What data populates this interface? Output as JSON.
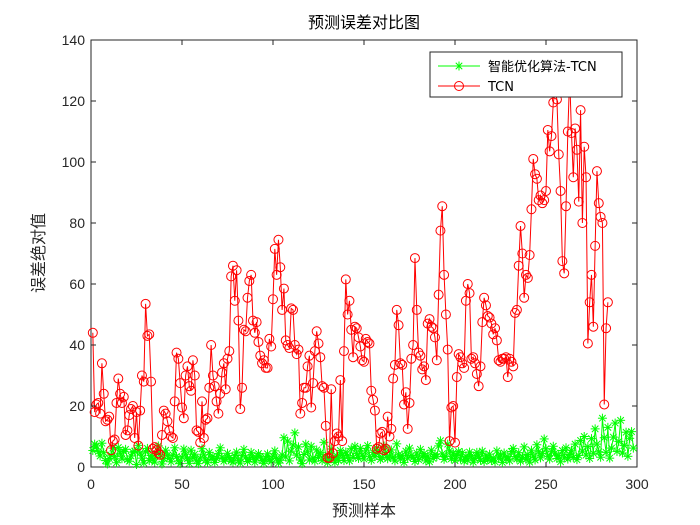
{
  "chart_data": {
    "type": "line",
    "title": "预测误差对比图",
    "xlabel": "预测样本",
    "ylabel": "误差绝对值",
    "xlim": [
      0,
      300
    ],
    "ylim": [
      0,
      140
    ],
    "xticks": [
      0,
      50,
      100,
      150,
      200,
      250,
      300
    ],
    "yticks": [
      0,
      20,
      40,
      60,
      80,
      100,
      120,
      140
    ],
    "grid": false,
    "legend_position": "top-right",
    "series": [
      {
        "name": "智能优化算法-TCN",
        "color": "#00ff00",
        "marker": "asterisk",
        "x_start": 1,
        "values": [
          5.4,
          7.5,
          6.9,
          5.1,
          3.6,
          7.8,
          4.7,
          2.1,
          1.0,
          2.8,
          3.9,
          6.2,
          3.4,
          1.4,
          6.4,
          4.5,
          2.7,
          5.1,
          5.8,
          2.4,
          1.9,
          3.6,
          4.9,
          5.2,
          0.8,
          7.1,
          4.6,
          2.9,
          1.3,
          5.0,
          6.1,
          2.1,
          3.8,
          2.6,
          1.6,
          4.4,
          6.9,
          4.2,
          1.0,
          2.7,
          5.5,
          3.8,
          2.9,
          1.7,
          4.0,
          6.3,
          3.5,
          2.0,
          1.1,
          3.2,
          5.9,
          4.2,
          2.7,
          1.2,
          5.5,
          3.0,
          4.2,
          2.0,
          1.1,
          2.9,
          6.0,
          4.0,
          2.3,
          1.4,
          4.8,
          2.6,
          3.5,
          1.5,
          2.8,
          4.4,
          6.3,
          3.2,
          1.9,
          2.5,
          4.5,
          3.1,
          2.0,
          1.6,
          3.7,
          4.9,
          2.1,
          1.3,
          3.8,
          5.8,
          3.3,
          1.8,
          2.5,
          4.8,
          3.1,
          1.6,
          2.9,
          4.4,
          3.5,
          2.1,
          1.2,
          3.0,
          4.3,
          2.5,
          1.7,
          3.6,
          5.3,
          2.8,
          1.3,
          2.2,
          4.0,
          9.6,
          3.3,
          8.5,
          2.0,
          5.2,
          7.2,
          11.2,
          3.9,
          6.6,
          2.3,
          1.1,
          4.1,
          7.5,
          5.0,
          2.3,
          6.8,
          3.0,
          1.9,
          5.6,
          3.2,
          4.7,
          2.1,
          8.1,
          3.5,
          1.4,
          2.9,
          5.9,
          3.3,
          1.5,
          3.6,
          2.2,
          5.4,
          3.9,
          2.1,
          4.9,
          3.7,
          2.0,
          6.0,
          3.1,
          6.8,
          4.4,
          2.8,
          6.1,
          3.9,
          2.6,
          5.3,
          7.0,
          3.5,
          2.2,
          4.8,
          3.4,
          6.3,
          4.4,
          2.5,
          3.1,
          6.9,
          4.8,
          2.7,
          3.5,
          5.6,
          3.2,
          2.0,
          7.6,
          4.0,
          2.6,
          3.8,
          1.5,
          5.2,
          2.9,
          6.2,
          3.8,
          3.1,
          1.8,
          4.6,
          2.4,
          5.8,
          3.3,
          4.4,
          2.0,
          3.6,
          1.7,
          5.5,
          2.8,
          4.1,
          3.4,
          6.9,
          8.6,
          4.3,
          2.5,
          3.5,
          7.5,
          5.3,
          2.7,
          4.6,
          2.1,
          3.8,
          5.1,
          2.6,
          4.7,
          1.9,
          3.4,
          2.2,
          4.9,
          3.7,
          1.6,
          2.8,
          4.8,
          3.5,
          2.2,
          5.2,
          1.8,
          3.7,
          2.5,
          4.2,
          2.1,
          3.0,
          1.7,
          5.3,
          2.9,
          3.9,
          1.5,
          4.6,
          2.6,
          3.4,
          2.0,
          5.1,
          6.1,
          3.4,
          2.6,
          4.7,
          1.9,
          3.2,
          6.6,
          2.5,
          4.1,
          1.6,
          5.5,
          3.6,
          2.3,
          7.3,
          5.0,
          3.0,
          4.4,
          9.2,
          6.0,
          3.5,
          2.6,
          5.0,
          6.8,
          4.6,
          2.8,
          3.8,
          1.7,
          5.4,
          3.0,
          6.3,
          2.6,
          4.1,
          5.5,
          3.1,
          7.5,
          2.4,
          3.8,
          8.7,
          5.2,
          10.0,
          3.9,
          6.7,
          2.8,
          9.3,
          4.5,
          12.5,
          7.5,
          5.0,
          3.2,
          16.0,
          9.6,
          4.8,
          13.0,
          2.9,
          6.2,
          9.8,
          14.4,
          5.1,
          8.4,
          15.3,
          4.6,
          7.1,
          11.4,
          3.5,
          9.4,
          11.6,
          6.2
        ]
      },
      {
        "name": "TCN",
        "color": "#ff0000",
        "marker": "circle",
        "x_start": 1,
        "values": [
          44.0,
          18.0,
          20.5,
          21.0,
          17.5,
          34.0,
          24.0,
          15.0,
          15.5,
          16.5,
          5.5,
          8.5,
          9.0,
          21.0,
          29.0,
          24.0,
          21.0,
          23.0,
          10.5,
          12.0,
          17.0,
          19.0,
          20.0,
          9.5,
          18.0,
          7.0,
          18.5,
          30.0,
          28.0,
          53.5,
          43.0,
          43.5,
          28.0,
          6.0,
          6.5,
          5.5,
          4.5,
          4.0,
          10.5,
          18.5,
          17.5,
          15.0,
          12.0,
          10.0,
          9.5,
          21.5,
          37.5,
          35.5,
          27.5,
          19.5,
          16.0,
          30.0,
          33.0,
          26.5,
          25.0,
          35.0,
          30.0,
          12.0,
          11.5,
          8.0,
          21.5,
          9.5,
          15.5,
          16.0,
          26.0,
          40.0,
          30.0,
          26.5,
          21.5,
          17.5,
          24.0,
          31.0,
          34.0,
          25.5,
          35.5,
          38.0,
          62.5,
          66.0,
          54.5,
          64.5,
          48.0,
          19.0,
          26.0,
          45.0,
          44.5,
          55.5,
          61.0,
          63.0,
          48.0,
          44.0,
          47.5,
          41.0,
          36.5,
          34.0,
          35.0,
          32.5,
          32.5,
          42.0,
          39.5,
          55.0,
          71.5,
          63.0,
          74.5,
          65.5,
          51.5,
          58.5,
          41.5,
          40.0,
          39.0,
          52.0,
          51.5,
          40.0,
          37.0,
          38.5,
          17.5,
          21.0,
          26.0,
          26.0,
          33.0,
          36.5,
          19.5,
          27.5,
          38.0,
          44.5,
          40.5,
          36.0,
          26.5,
          26.0,
          13.5,
          3.0,
          3.0,
          25.5,
          4.5,
          8.5,
          11.0,
          10.0,
          28.5,
          8.5,
          38.0,
          61.5,
          50.0,
          54.5,
          45.0,
          36.0,
          46.0,
          45.5,
          42.5,
          39.5,
          35.0,
          34.5,
          42.0,
          41.0,
          40.5,
          25.0,
          22.0,
          18.5,
          6.0,
          6.5,
          11.0,
          11.5,
          5.5,
          6.0,
          16.5,
          10.0,
          12.5,
          29.0,
          33.5,
          51.5,
          46.5,
          34.0,
          33.5,
          20.5,
          24.5,
          12.5,
          21.0,
          35.5,
          40.0,
          68.5,
          51.5,
          37.5,
          36.5,
          32.0,
          33.0,
          28.5,
          47.0,
          48.5,
          46.0,
          45.5,
          42.5,
          35.0,
          56.5,
          77.5,
          85.5,
          63.0,
          50.0,
          38.5,
          8.5,
          19.5,
          20.0,
          8.0,
          29.5,
          37.0,
          36.0,
          34.0,
          32.5,
          54.5,
          60.0,
          57.0,
          35.5,
          36.0,
          34.0,
          30.5,
          26.5,
          33.0,
          47.5,
          55.5,
          53.0,
          49.5,
          49.0,
          47.0,
          43.5,
          45.5,
          41.5,
          35.0,
          34.5,
          35.5,
          35.5,
          36.0,
          29.5,
          35.5,
          34.5,
          33.0,
          50.5,
          51.5,
          66.0,
          79.0,
          70.0,
          55.5,
          63.0,
          62.0,
          69.5,
          84.5,
          101.0,
          96.0,
          94.5,
          87.5,
          89.0,
          86.5,
          87.5,
          90.5,
          110.5,
          103.5,
          108.5,
          119.5,
          123.0,
          120.5,
          102.5,
          90.5,
          67.5,
          63.5,
          85.5,
          110.0,
          128.0,
          109.5,
          95.0,
          111.0,
          104.0,
          87.0,
          117.0,
          80.0,
          105.0,
          95.0,
          40.5,
          54.0,
          63.0,
          46.0,
          72.5,
          97.0,
          86.5,
          82.0,
          80.0,
          20.5,
          45.5,
          54.0
        ]
      }
    ]
  }
}
